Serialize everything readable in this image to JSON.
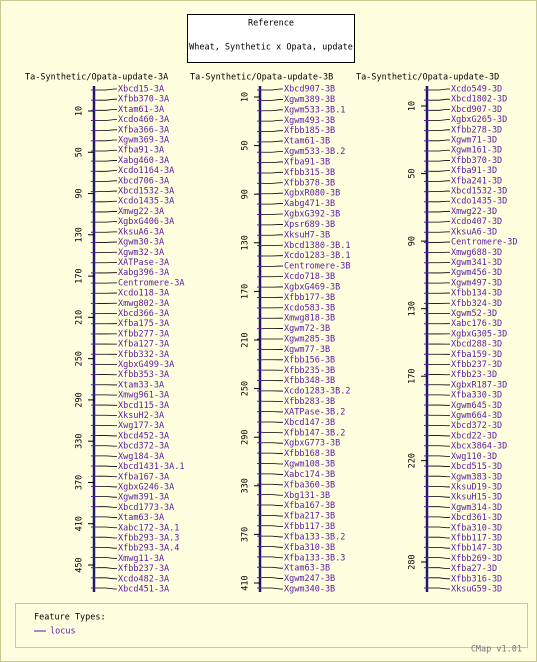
{
  "reference": {
    "title": "Reference",
    "subtitle": "Wheat, Synthetic x Opata, update"
  },
  "maps": [
    {
      "title": "Ta-Synthetic/Opata-update-3A",
      "ticks": [
        10,
        50,
        90,
        130,
        170,
        210,
        250,
        290,
        330,
        370,
        410,
        450
      ],
      "features": [
        "Xbcd15-3A",
        "Xfbb370-3A",
        "Xtam61-3A",
        "Xcdo460-3A",
        "Xfba366-3A",
        "Xgwm369-3A",
        "Xfba91-3A",
        "Xabg460-3A",
        "Xcdo1164-3A",
        "Xbcd706-3A",
        "Xbcd1532-3A",
        "Xcdo1435-3A",
        "Xmwg22-3A",
        "XgbxG406-3A",
        "XksuA6-3A",
        "Xgwm30-3A",
        "Xgwm32-3A",
        "XATPase-3A",
        "Xabg396-3A",
        "Centromere-3A",
        "Xcdo118-3A",
        "Xmwg802-3A",
        "Xbcd366-3A",
        "Xfba175-3A",
        "Xfbb277-3A",
        "Xfba127-3A",
        "Xfbb332-3A",
        "XgbxG499-3A",
        "Xfbb353-3A",
        "Xtam33-3A",
        "Xmwg961-3A",
        "Xbcd115-3A",
        "XksuH2-3A",
        "Xwg177-3A",
        "Xbcd452-3A",
        "Xbcd372-3A",
        "Xwg184-3A",
        "Xbcd1431-3A.1",
        "Xfba167-3A",
        "XgbxG246-3A",
        "Xgwm391-3A",
        "Xbcd1773-3A",
        "Xtam63-3A",
        "Xabc172-3A.1",
        "Xfbb293-3A.3",
        "Xfbb293-3A.4",
        "Xmwg11-3A",
        "Xfbb237-3A",
        "Xcdo482-3A",
        "Xbcd451-3A"
      ]
    },
    {
      "title": "Ta-Synthetic/Opata-update-3B",
      "ticks": [
        10,
        50,
        90,
        130,
        170,
        210,
        250,
        290,
        330,
        370,
        410
      ],
      "features": [
        "Xbcd907-3B",
        "Xgwm389-3B",
        "Xgwm533-3B.1",
        "Xgwm493-3B",
        "Xfbb185-3B",
        "Xtam61-3B",
        "Xgwm533-3B.2",
        "Xfba91-3B",
        "Xfbb315-3B",
        "Xfbb378-3B",
        "XgbxR080-3B",
        "Xabg471-3B",
        "XgbxG392-3B",
        "Xpsr689-3B",
        "XksuH7-3B",
        "Xbcd1380-3B.1",
        "Xcdo1283-3B.1",
        "Centromere-3B",
        "Xcdo718-3B",
        "XgbxG469-3B",
        "Xfbb177-3B",
        "Xcdo583-3B",
        "Xmwg818-3B",
        "Xgwm72-3B",
        "Xgwm285-3B",
        "Xgwm77-3B",
        "Xfbb156-3B",
        "Xfbb235-3B",
        "Xfbb348-3B",
        "Xcdo1283-3B.2",
        "Xfbb283-3B",
        "XATPase-3B.2",
        "Xbcd147-3B",
        "Xfbb147-3B.2",
        "XgbxG773-3B",
        "Xfbb168-3B",
        "Xgwm108-3B",
        "Xabc174-3B",
        "Xfba360-3B",
        "Xbg131-3B",
        "Xfba167-3B",
        "Xfba217-3B",
        "Xfbb117-3B",
        "Xfba133-3B.2",
        "Xfba310-3B",
        "Xfba133-3B.3",
        "Xtam63-3B",
        "Xgwm247-3B",
        "Xgwm340-3B"
      ]
    },
    {
      "title": "Ta-Synthetic/Opata-update-3D",
      "ticks": [
        10,
        50,
        90,
        130,
        170,
        220,
        280
      ],
      "features": [
        "Xcdo549-3D",
        "Xbcd1802-3D",
        "Xbcd907-3D",
        "XgbxG265-3D",
        "Xfbb278-3D",
        "Xgwm71-3D",
        "Xgwm161-3D",
        "Xfbb370-3D",
        "Xfba91-3D",
        "Xfba241-3D",
        "Xbcd1532-3D",
        "Xcdo1435-3D",
        "Xmwg22-3D",
        "Xcdo407-3D",
        "XksuA6-3D",
        "Centromere-3D",
        "Xmwg688-3D",
        "Xgwm341-3D",
        "Xgwm456-3D",
        "Xgwm497-3D",
        "Xfbb134-3D",
        "Xfbb324-3D",
        "Xgwm52-3D",
        "Xabc176-3D",
        "XgbxG305-3D",
        "Xbcd288-3D",
        "Xfba159-3D",
        "Xfbb237-3D",
        "Xfbb23-3D",
        "XgbxR187-3D",
        "Xfba330-3D",
        "Xgwm645-3D",
        "Xgwm664-3D",
        "Xbcd372-3D",
        "Xbcd22-3D",
        "Xbcx3864-3D",
        "Xwg110-3D",
        "Xbcd515-3D",
        "Xgwm383-3D",
        "XksuD19-3D",
        "XksuH15-3D",
        "Xgwm314-3D",
        "Xbcd361-3D",
        "Xfba310-3D",
        "Xfbb117-3D",
        "Xfbb147-3D",
        "Xfbb269-3D",
        "Xfba27-3D",
        "Xfbb316-3D",
        "XksuG59-3D"
      ]
    }
  ],
  "legend": {
    "title": "Feature Types:",
    "items": [
      "locus"
    ]
  },
  "footer": "CMap v1.01"
}
